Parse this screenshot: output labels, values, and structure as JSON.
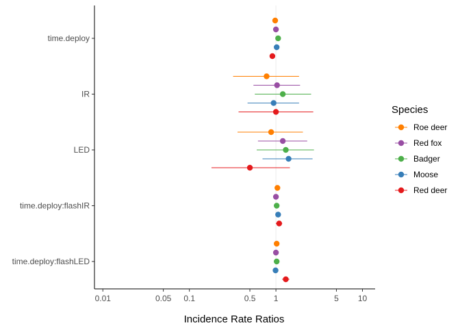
{
  "chart_data": {
    "type": "scatter",
    "subtype": "forest-plot-with-confidence-intervals",
    "title": "",
    "xlabel": "Incidence Rate Ratios",
    "ylabel": "",
    "x_scale": "log10",
    "xlim": [
      0.008,
      14
    ],
    "x_ticks": [
      0.01,
      0.05,
      0.1,
      0.5,
      1,
      5,
      10
    ],
    "x_tick_labels": [
      "0.01",
      "0.05",
      "0.1",
      "0.5",
      "1",
      "5",
      "10"
    ],
    "reference_line_x": 1,
    "grid": false,
    "legend": {
      "title": "Species",
      "position": "right"
    },
    "categories": [
      "time.deploy",
      "IR",
      "LED",
      "time.deploy:flashIR",
      "time.deploy:flashLED"
    ],
    "series": [
      {
        "name": "Roe deer",
        "color": "#FF7F00",
        "estimates": [
          0.98,
          0.78,
          0.88,
          1.04,
          1.02
        ],
        "ci_low": [
          0.95,
          0.32,
          0.36,
          1.01,
          0.99
        ],
        "ci_high": [
          1.01,
          1.85,
          2.05,
          1.07,
          1.05
        ]
      },
      {
        "name": "Red fox",
        "color": "#984EA3",
        "estimates": [
          1.0,
          1.03,
          1.2,
          1.0,
          1.0
        ],
        "ci_low": [
          0.97,
          0.55,
          0.62,
          0.97,
          0.97
        ],
        "ci_high": [
          1.03,
          1.9,
          2.3,
          1.03,
          1.03
        ]
      },
      {
        "name": "Badger",
        "color": "#4DAF4A",
        "estimates": [
          1.06,
          1.2,
          1.3,
          1.02,
          1.02
        ],
        "ci_low": [
          1.02,
          0.57,
          0.6,
          0.99,
          0.99
        ],
        "ci_high": [
          1.1,
          2.55,
          2.75,
          1.05,
          1.05
        ]
      },
      {
        "name": "Moose",
        "color": "#377EB8",
        "estimates": [
          1.02,
          0.94,
          1.4,
          1.06,
          0.99
        ],
        "ci_low": [
          0.98,
          0.47,
          0.7,
          1.02,
          0.95
        ],
        "ci_high": [
          1.06,
          1.85,
          2.65,
          1.1,
          1.03
        ]
      },
      {
        "name": "Red deer",
        "color": "#E41A1C",
        "estimates": [
          0.91,
          1.0,
          0.5,
          1.09,
          1.3
        ],
        "ci_low": [
          0.86,
          0.37,
          0.18,
          1.0,
          1.18
        ],
        "ci_high": [
          0.96,
          2.7,
          1.45,
          1.18,
          1.43
        ]
      }
    ]
  }
}
